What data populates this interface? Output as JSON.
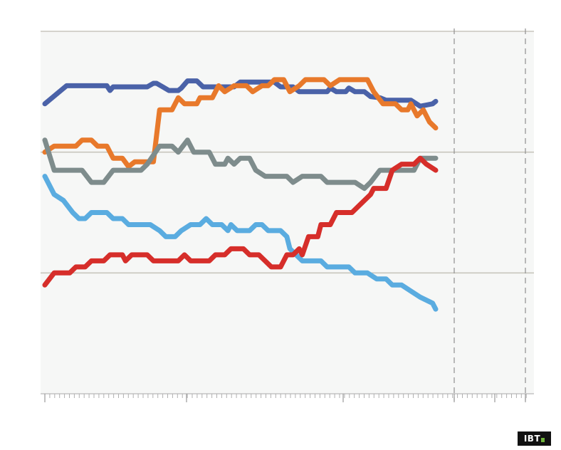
{
  "logo": {
    "text": "IBT",
    "accent": "#6fb33a"
  },
  "chart_data": {
    "type": "line",
    "title": "",
    "xlabel": "",
    "ylabel": "",
    "x_range": [
      0,
      158
    ],
    "y_range": [
      0,
      3
    ],
    "gridlines_y": [
      1,
      2,
      3
    ],
    "dashed_x": [
      130,
      155
    ],
    "grid": true,
    "legend": "none",
    "background": "#f6f7f6",
    "series": [
      {
        "color": "#4a62a8",
        "points": [
          [
            0,
            2.4
          ],
          [
            7,
            2.55
          ],
          [
            20,
            2.55
          ],
          [
            21,
            2.51
          ],
          [
            22,
            2.54
          ],
          [
            33,
            2.54
          ],
          [
            35,
            2.57
          ],
          [
            36,
            2.57
          ],
          [
            38,
            2.54
          ],
          [
            40,
            2.51
          ],
          [
            43,
            2.51
          ],
          [
            44,
            2.53
          ],
          [
            46,
            2.59
          ],
          [
            49,
            2.59
          ],
          [
            51,
            2.54
          ],
          [
            61,
            2.54
          ],
          [
            63,
            2.58
          ],
          [
            74,
            2.58
          ],
          [
            76,
            2.54
          ],
          [
            80,
            2.54
          ],
          [
            82,
            2.5
          ],
          [
            91,
            2.5
          ],
          [
            92,
            2.53
          ],
          [
            94,
            2.5
          ],
          [
            97,
            2.5
          ],
          [
            98,
            2.53
          ],
          [
            100,
            2.5
          ],
          [
            103,
            2.5
          ],
          [
            105,
            2.46
          ],
          [
            108,
            2.45
          ],
          [
            110,
            2.43
          ],
          [
            118,
            2.43
          ],
          [
            121,
            2.38
          ],
          [
            123,
            2.39
          ],
          [
            125,
            2.4
          ],
          [
            126,
            2.42
          ]
        ]
      },
      {
        "color": "#e8792b",
        "points": [
          [
            0,
            2.0
          ],
          [
            3,
            2.05
          ],
          [
            10,
            2.05
          ],
          [
            12,
            2.1
          ],
          [
            15,
            2.1
          ],
          [
            17,
            2.05
          ],
          [
            20,
            2.05
          ],
          [
            22,
            1.95
          ],
          [
            25,
            1.95
          ],
          [
            27,
            1.88
          ],
          [
            29,
            1.92
          ],
          [
            35,
            1.92
          ],
          [
            37,
            2.35
          ],
          [
            41,
            2.35
          ],
          [
            43,
            2.45
          ],
          [
            45,
            2.4
          ],
          [
            49,
            2.4
          ],
          [
            50,
            2.45
          ],
          [
            54,
            2.45
          ],
          [
            56,
            2.55
          ],
          [
            58,
            2.5
          ],
          [
            61,
            2.55
          ],
          [
            65,
            2.55
          ],
          [
            67,
            2.5
          ],
          [
            70,
            2.55
          ],
          [
            72,
            2.55
          ],
          [
            74,
            2.6
          ],
          [
            77,
            2.6
          ],
          [
            79,
            2.5
          ],
          [
            82,
            2.55
          ],
          [
            84,
            2.6
          ],
          [
            90,
            2.6
          ],
          [
            92,
            2.55
          ],
          [
            95,
            2.6
          ],
          [
            104,
            2.6
          ],
          [
            106,
            2.5
          ],
          [
            109,
            2.4
          ],
          [
            113,
            2.4
          ],
          [
            115,
            2.35
          ],
          [
            117,
            2.35
          ],
          [
            118,
            2.4
          ],
          [
            120,
            2.3
          ],
          [
            122,
            2.35
          ],
          [
            124,
            2.25
          ],
          [
            126,
            2.2
          ]
        ]
      },
      {
        "color": "#7e8c8c",
        "points": [
          [
            0,
            2.1
          ],
          [
            3,
            1.85
          ],
          [
            12,
            1.85
          ],
          [
            15,
            1.75
          ],
          [
            19,
            1.75
          ],
          [
            22,
            1.85
          ],
          [
            31,
            1.85
          ],
          [
            33,
            1.9
          ],
          [
            37,
            2.05
          ],
          [
            41,
            2.05
          ],
          [
            43,
            2.0
          ],
          [
            46,
            2.1
          ],
          [
            48,
            2.0
          ],
          [
            53,
            2.0
          ],
          [
            55,
            1.9
          ],
          [
            58,
            1.9
          ],
          [
            59,
            1.95
          ],
          [
            61,
            1.9
          ],
          [
            63,
            1.95
          ],
          [
            66,
            1.95
          ],
          [
            68,
            1.85
          ],
          [
            71,
            1.8
          ],
          [
            78,
            1.8
          ],
          [
            80,
            1.75
          ],
          [
            83,
            1.8
          ],
          [
            89,
            1.8
          ],
          [
            91,
            1.75
          ],
          [
            100,
            1.75
          ],
          [
            103,
            1.7
          ],
          [
            105,
            1.75
          ],
          [
            108,
            1.85
          ],
          [
            119,
            1.85
          ],
          [
            121,
            1.95
          ],
          [
            126,
            1.95
          ]
        ]
      },
      {
        "color": "#5aace0",
        "points": [
          [
            0,
            1.8
          ],
          [
            3,
            1.65
          ],
          [
            6,
            1.6
          ],
          [
            9,
            1.5
          ],
          [
            11,
            1.45
          ],
          [
            13,
            1.45
          ],
          [
            15,
            1.5
          ],
          [
            20,
            1.5
          ],
          [
            22,
            1.45
          ],
          [
            25,
            1.45
          ],
          [
            27,
            1.4
          ],
          [
            34,
            1.4
          ],
          [
            37,
            1.35
          ],
          [
            39,
            1.3
          ],
          [
            42,
            1.3
          ],
          [
            44,
            1.35
          ],
          [
            47,
            1.4
          ],
          [
            50,
            1.4
          ],
          [
            52,
            1.45
          ],
          [
            54,
            1.4
          ],
          [
            57,
            1.4
          ],
          [
            59,
            1.35
          ],
          [
            60,
            1.4
          ],
          [
            62,
            1.35
          ],
          [
            66,
            1.35
          ],
          [
            68,
            1.4
          ],
          [
            70,
            1.4
          ],
          [
            72,
            1.35
          ],
          [
            76,
            1.35
          ],
          [
            78,
            1.3
          ],
          [
            79,
            1.2
          ],
          [
            83,
            1.1
          ],
          [
            89,
            1.1
          ],
          [
            91,
            1.05
          ],
          [
            98,
            1.05
          ],
          [
            100,
            1.0
          ],
          [
            104,
            1.0
          ],
          [
            107,
            0.95
          ],
          [
            110,
            0.95
          ],
          [
            112,
            0.9
          ],
          [
            115,
            0.9
          ],
          [
            118,
            0.85
          ],
          [
            121,
            0.8
          ],
          [
            125,
            0.75
          ],
          [
            126,
            0.7
          ]
        ]
      },
      {
        "color": "#d62e2a",
        "points": [
          [
            0,
            0.9
          ],
          [
            3,
            1.0
          ],
          [
            8,
            1.0
          ],
          [
            10,
            1.05
          ],
          [
            13,
            1.05
          ],
          [
            15,
            1.1
          ],
          [
            19,
            1.1
          ],
          [
            21,
            1.15
          ],
          [
            25,
            1.15
          ],
          [
            26,
            1.1
          ],
          [
            28,
            1.15
          ],
          [
            33,
            1.15
          ],
          [
            35,
            1.1
          ],
          [
            43,
            1.1
          ],
          [
            45,
            1.15
          ],
          [
            47,
            1.1
          ],
          [
            53,
            1.1
          ],
          [
            55,
            1.15
          ],
          [
            58,
            1.15
          ],
          [
            60,
            1.2
          ],
          [
            64,
            1.2
          ],
          [
            66,
            1.15
          ],
          [
            69,
            1.15
          ],
          [
            71,
            1.1
          ],
          [
            73,
            1.05
          ],
          [
            76,
            1.05
          ],
          [
            78,
            1.15
          ],
          [
            80,
            1.15
          ],
          [
            82,
            1.2
          ],
          [
            83,
            1.15
          ],
          [
            85,
            1.3
          ],
          [
            88,
            1.3
          ],
          [
            89,
            1.4
          ],
          [
            92,
            1.4
          ],
          [
            94,
            1.5
          ],
          [
            99,
            1.5
          ],
          [
            101,
            1.55
          ],
          [
            105,
            1.65
          ],
          [
            106,
            1.7
          ],
          [
            110,
            1.7
          ],
          [
            112,
            1.85
          ],
          [
            115,
            1.9
          ],
          [
            119,
            1.9
          ],
          [
            121,
            1.95
          ],
          [
            123,
            1.9
          ],
          [
            126,
            1.85
          ]
        ]
      }
    ]
  }
}
